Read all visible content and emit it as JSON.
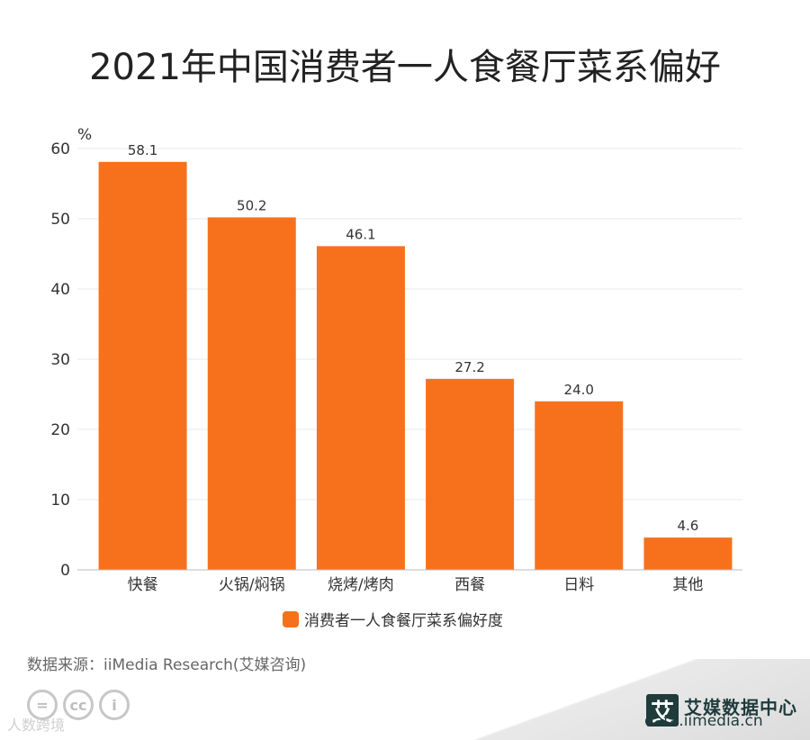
{
  "title": "2021年中国消费者一人食餐厅菜系偏好",
  "colors": {
    "bar": "#F7711C",
    "grid": "#e8e8e8",
    "axis": "#333333"
  },
  "chart_data": {
    "type": "bar",
    "title": "2021年中国消费者一人食餐厅菜系偏好",
    "ylabel": "%",
    "ylim": [
      0,
      60
    ],
    "yticks": [
      0,
      10,
      20,
      30,
      40,
      50,
      60
    ],
    "categories": [
      "快餐",
      "火锅/焖锅",
      "烧烤/烤肉",
      "西餐",
      "日料",
      "其他"
    ],
    "series": [
      {
        "name": "消费者一人食餐厅菜系偏好度",
        "values": [
          58.1,
          50.2,
          46.1,
          27.2,
          24.0,
          4.6
        ]
      }
    ],
    "value_labels": [
      "58.1",
      "50.2",
      "46.1",
      "27.2",
      "24.0",
      "4.6"
    ],
    "grid": true,
    "legend_position": "bottom"
  },
  "legend": {
    "label": "消费者一人食餐厅菜系偏好度"
  },
  "source": "数据来源：iiMedia Research(艾媒咨询)",
  "license_icons": [
    "=",
    "cc",
    "i"
  ],
  "watermark": "人数跨境",
  "brand": {
    "logo_char": "艾",
    "name": "艾媒数据中心",
    "url": "data.iimedia.cn"
  }
}
